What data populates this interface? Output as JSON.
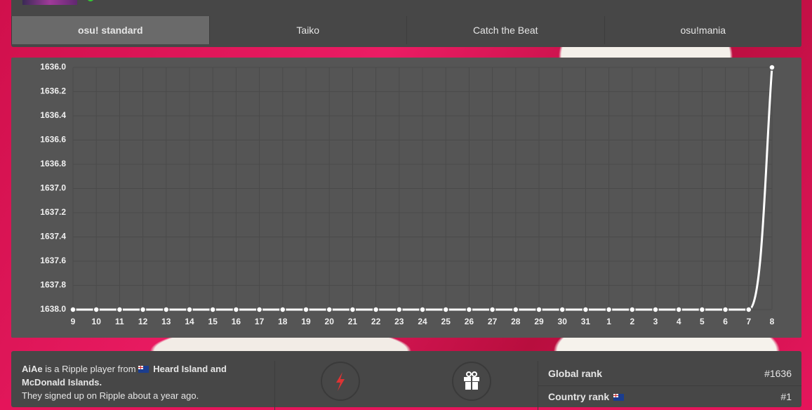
{
  "tabs": [
    "osu! standard",
    "Taiko",
    "Catch the Beat",
    "osu!mania"
  ],
  "active_tab": 0,
  "chart_data": {
    "type": "line",
    "categories": [
      "9",
      "10",
      "11",
      "12",
      "13",
      "14",
      "15",
      "16",
      "17",
      "18",
      "19",
      "20",
      "21",
      "22",
      "23",
      "24",
      "25",
      "26",
      "27",
      "28",
      "29",
      "30",
      "31",
      "1",
      "2",
      "3",
      "4",
      "5",
      "6",
      "7",
      "8"
    ],
    "values": [
      1638,
      1638,
      1638,
      1638,
      1638,
      1638,
      1638,
      1638,
      1638,
      1638,
      1638,
      1638,
      1638,
      1638,
      1638,
      1638,
      1638,
      1638,
      1638,
      1638,
      1638,
      1638,
      1638,
      1638,
      1638,
      1638,
      1638,
      1638,
      1638,
      1638,
      1636
    ],
    "color": "#ffffff",
    "ylim": [
      1638,
      1636
    ],
    "yticks": [
      {
        "value": 1638,
        "label": "1638.0"
      },
      1637.8,
      1637.6,
      1637.4,
      1637.2,
      {
        "value": 1637,
        "label": "1637.0"
      },
      1636.8,
      1636.6,
      1636.4,
      1636.2,
      {
        "value": 1636,
        "label": "1636.0"
      }
    ],
    "grid": true
  },
  "profile": {
    "username": "AiAe",
    "text_1": "is a Ripple player from",
    "country": "Heard Island and McDonald Islands.",
    "text_2": "They signed up on Ripple about a year ago."
  },
  "stats": [
    {
      "label": "Global rank",
      "value": "#1636"
    },
    {
      "label": "Country rank",
      "value": "#1"
    }
  ]
}
